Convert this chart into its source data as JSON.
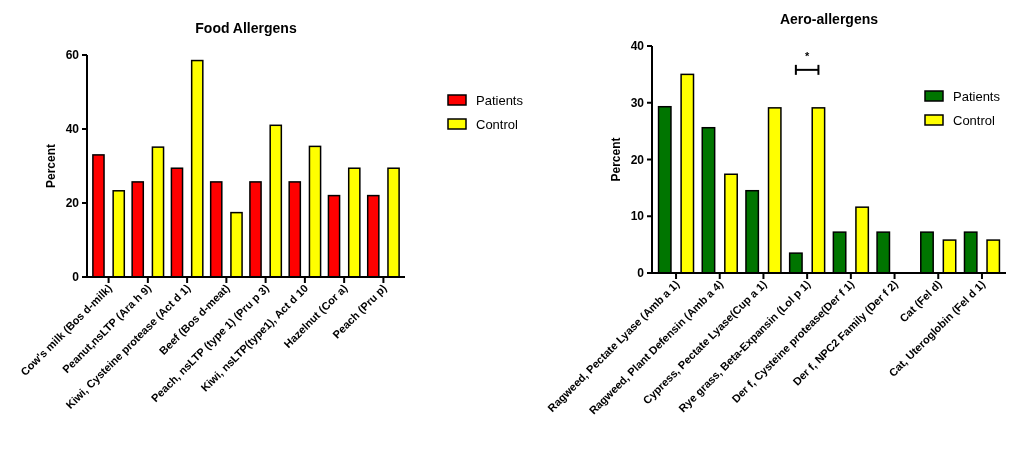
{
  "chart_data": [
    {
      "type": "bar",
      "title": "Food Allergens",
      "ylabel": "Percent",
      "categories": [
        "Cow's milk (Bos d-milk)",
        "Peanut,nsLTP (Ara h 9)",
        "Kiwi, Cysteine protease (Act d 1)",
        "Beef (Bos d-meat)",
        "Peach, nsLTP (type 1) (Pru p 3)",
        "Kiwi, nsLTP(type1), Act d 10",
        "Hazelnut (Cor a)",
        "Peach (Pru p)"
      ],
      "series": [
        {
          "name": "Patients",
          "color": "#ff0000",
          "values": [
            33,
            25.7,
            29.4,
            25.7,
            25.7,
            25.7,
            22,
            22
          ]
        },
        {
          "name": "Control",
          "color": "#ffff00",
          "values": [
            23.3,
            35.1,
            58.5,
            17.4,
            41,
            35.3,
            29.4,
            29.4
          ]
        }
      ],
      "ylim": [
        0,
        60
      ],
      "yticks": [
        0,
        20,
        40,
        60
      ],
      "legend": "right",
      "grid": false
    },
    {
      "type": "bar",
      "title": "Aero-allergens",
      "ylabel": "Percent",
      "categories": [
        "Ragweed, Pectate Lyase (Amb a 1)",
        "Ragweed, Plant Defensin (Amb a 4)",
        "Cypress, Pectate Lyase(Cup a 1)",
        "Rye grass, Beta-Expansin (Lol p 1)",
        "Der f, Cysteine protease(Der f 1)",
        "Der f, NPC2 Family (Der f 2)",
        "Cat (Fel d)",
        "Cat, Uteroglobin (Fel d 1)"
      ],
      "series": [
        {
          "name": "Patients",
          "color": "#007500",
          "values": [
            29.3,
            25.6,
            14.5,
            3.5,
            7.2,
            7.2,
            7.2,
            7.2
          ]
        },
        {
          "name": "Control",
          "color": "#ffff00",
          "values": [
            35,
            17.4,
            29.1,
            29.1,
            11.6,
            0,
            5.8,
            5.8
          ]
        }
      ],
      "ylim": [
        0,
        40
      ],
      "yticks": [
        0,
        10,
        20,
        30,
        40
      ],
      "legend": "right",
      "grid": false,
      "annotations": [
        "*"
      ]
    }
  ]
}
